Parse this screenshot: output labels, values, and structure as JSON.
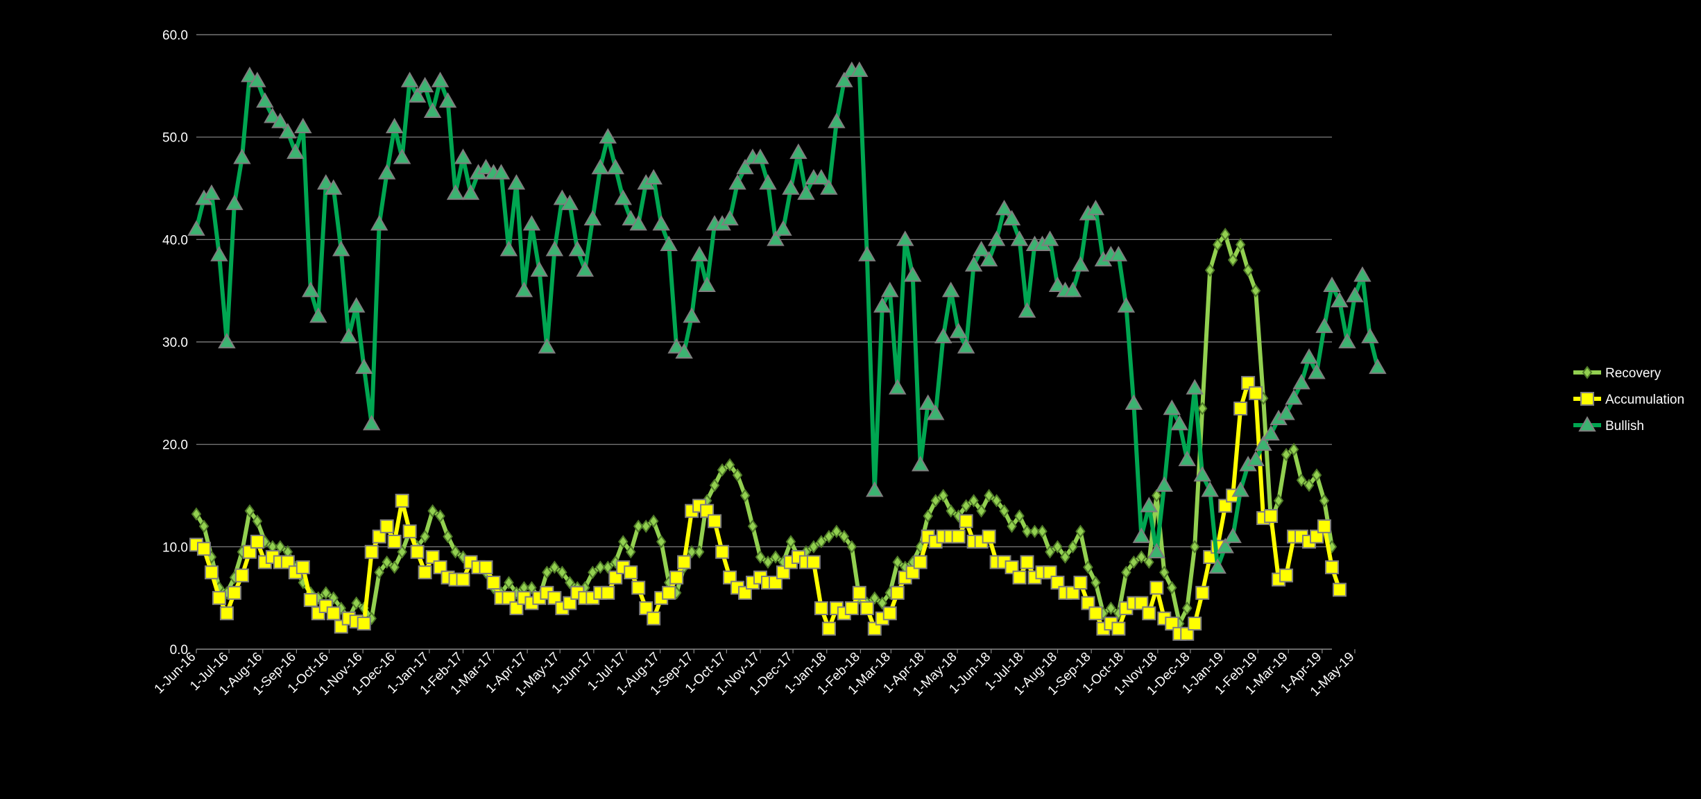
{
  "chart_data": {
    "type": "line",
    "ylim": [
      0,
      60
    ],
    "y_ticks": [
      "0.0",
      "10.0",
      "20.0",
      "30.0",
      "40.0",
      "50.0",
      "60.0"
    ],
    "x_ticks": [
      "1-Jun-16",
      "1-Jul-16",
      "1-Aug-16",
      "1-Sep-16",
      "1-Oct-16",
      "1-Nov-16",
      "1-Dec-16",
      "1-Jan-17",
      "1-Feb-17",
      "1-Mar-17",
      "1-Apr-17",
      "1-May-17",
      "1-Jun-17",
      "1-Jul-17",
      "1-Aug-17",
      "1-Sep-17",
      "1-Oct-17",
      "1-Nov-17",
      "1-Dec-17",
      "1-Jan-18",
      "1-Feb-18",
      "1-Mar-18",
      "1-Apr-18",
      "1-May-18",
      "1-Jun-18",
      "1-Jul-18",
      "1-Aug-18",
      "1-Sep-18",
      "1-Oct-18",
      "1-Nov-18",
      "1-Dec-18",
      "1-Jan-19",
      "1-Feb-19",
      "1-Mar-19",
      "1-Apr-19",
      "1-May-19"
    ],
    "x_start": "1-Jun-16",
    "interval": "weekly",
    "grid": true,
    "legend": "right",
    "series": [
      {
        "name": "Recovery",
        "color": "#92d050",
        "marker": "diamond",
        "values": [
          13.2,
          12.0,
          9.0,
          6.0,
          5.5,
          7.0,
          9.5,
          13.5,
          12.5,
          10.5,
          10.0,
          10.0,
          9.5,
          8.0,
          6.5,
          5.5,
          5.0,
          5.5,
          5.0,
          4.0,
          3.0,
          4.5,
          4.0,
          3.0,
          7.5,
          8.5,
          8.0,
          9.5,
          11.5,
          10.0,
          11.0,
          13.5,
          13.0,
          11.0,
          9.5,
          9.0,
          8.5,
          8.0,
          7.5,
          6.0,
          5.5,
          6.5,
          5.5,
          6.0,
          6.0,
          5.0,
          7.5,
          8.0,
          7.5,
          6.5,
          6.0,
          6.0,
          7.5,
          8.0,
          8.0,
          8.5,
          10.5,
          9.5,
          12.0,
          12.0,
          12.5,
          10.5,
          6.5,
          5.5,
          8.0,
          9.5,
          9.5,
          14.5,
          16.0,
          17.5,
          18.0,
          17.0,
          15.0,
          12.0,
          9.0,
          8.5,
          9.0,
          8.5,
          10.5,
          9.0,
          9.5,
          10.0,
          10.5,
          11.0,
          11.5,
          11.0,
          10.0,
          5.0,
          4.5,
          5.0,
          4.5,
          5.5,
          8.5,
          8.0,
          8.5,
          10.0,
          13.0,
          14.5,
          15.0,
          13.5,
          13.0,
          14.0,
          14.5,
          13.5,
          15.0,
          14.5,
          13.5,
          12.0,
          13.0,
          11.5,
          11.5,
          11.5,
          9.5,
          10.0,
          9.0,
          10.0,
          11.5,
          8.0,
          6.5,
          3.5,
          4.0,
          3.5,
          7.5,
          8.5,
          9.0,
          8.5,
          15.0,
          7.5,
          6.0,
          2.5,
          4.0,
          10.0,
          23.5,
          37.0,
          39.5,
          40.5,
          38.0,
          39.5,
          37.0,
          35.0,
          24.5,
          12.5,
          14.5,
          19.0,
          19.5,
          16.5,
          16.0,
          17.0,
          14.5,
          10.0
        ]
      },
      {
        "name": "Accumulation",
        "color": "#ffff00",
        "marker": "square",
        "values": [
          10.2,
          9.8,
          7.5,
          5.0,
          3.5,
          5.5,
          7.2,
          9.5,
          10.5,
          8.5,
          9.0,
          8.5,
          8.5,
          7.5,
          8.0,
          4.8,
          3.5,
          4.2,
          3.5,
          2.2,
          3.0,
          2.7,
          2.5,
          9.5,
          11.0,
          12.0,
          10.5,
          14.5,
          11.5,
          9.5,
          7.5,
          9.0,
          8.0,
          7.0,
          6.8,
          6.8,
          8.5,
          8.0,
          8.0,
          6.5,
          5.0,
          5.0,
          4.0,
          5.0,
          4.5,
          5.0,
          5.5,
          5.0,
          4.0,
          4.5,
          5.5,
          5.0,
          5.0,
          5.5,
          5.5,
          7.0,
          8.0,
          7.5,
          6.0,
          4.0,
          3.0,
          5.0,
          5.5,
          7.0,
          8.5,
          13.5,
          14.0,
          13.5,
          12.5,
          9.5,
          7.0,
          6.0,
          5.5,
          6.5,
          7.0,
          6.5,
          6.5,
          7.5,
          8.5,
          9.0,
          8.5,
          8.5,
          4.0,
          2.0,
          4.0,
          3.5,
          4.0,
          5.5,
          4.0,
          2.0,
          3.0,
          3.5,
          5.5,
          7.0,
          7.5,
          8.5,
          11.0,
          10.5,
          11.0,
          11.0,
          11.0,
          12.5,
          10.5,
          10.5,
          11.0,
          8.5,
          8.5,
          8.0,
          7.0,
          8.5,
          7.0,
          7.5,
          7.5,
          6.5,
          5.5,
          5.5,
          6.5,
          4.5,
          3.5,
          2.0,
          2.5,
          2.0,
          4.0,
          4.5,
          4.5,
          3.5,
          6.0,
          3.0,
          2.5,
          1.5,
          1.5,
          2.5,
          5.5,
          9.0,
          10.0,
          14.0,
          15.0,
          23.5,
          26.0,
          25.0,
          12.8,
          13.0,
          6.8,
          7.2,
          11.0,
          11.0,
          10.5,
          11.0,
          12.0,
          8.0,
          5.8
        ]
      },
      {
        "name": "Bullish",
        "color": "#00a651",
        "marker": "triangle",
        "values": [
          41.0,
          44.0,
          44.5,
          38.5,
          30.0,
          43.5,
          48.0,
          56.0,
          55.5,
          53.5,
          52.0,
          51.5,
          50.5,
          48.5,
          51.0,
          35.0,
          32.5,
          45.5,
          45.0,
          39.0,
          30.5,
          33.5,
          27.5,
          22.0,
          41.5,
          46.5,
          51.0,
          48.0,
          55.5,
          54.0,
          55.0,
          52.5,
          55.5,
          53.5,
          44.5,
          48.0,
          44.5,
          46.5,
          47.0,
          46.5,
          46.5,
          39.0,
          45.5,
          35.0,
          41.5,
          37.0,
          29.5,
          39.0,
          44.0,
          43.5,
          39.0,
          37.0,
          42.0,
          47.0,
          50.0,
          47.0,
          44.0,
          42.0,
          41.5,
          45.5,
          46.0,
          41.5,
          39.5,
          29.5,
          29.0,
          32.5,
          38.5,
          35.5,
          41.5,
          41.5,
          42.0,
          45.5,
          47.0,
          48.0,
          48.0,
          45.5,
          40.0,
          41.0,
          45.0,
          48.5,
          44.5,
          46.0,
          46.0,
          45.0,
          51.5,
          55.5,
          56.5,
          56.5,
          38.5,
          15.5,
          33.5,
          35.0,
          25.5,
          40.0,
          36.5,
          18.0,
          24.0,
          23.0,
          30.5,
          35.0,
          31.0,
          29.5,
          37.5,
          39.0,
          38.0,
          40.0,
          43.0,
          42.0,
          40.0,
          33.0,
          39.5,
          39.5,
          40.0,
          35.5,
          35.0,
          35.0,
          37.5,
          42.5,
          43.0,
          38.0,
          38.5,
          38.5,
          33.5,
          24.0,
          11.0,
          14.0,
          9.5,
          16.0,
          23.5,
          22.0,
          18.5,
          25.5,
          17.0,
          15.5,
          8.0,
          10.0,
          11.0,
          15.5,
          18.0,
          18.5,
          20.0,
          21.0,
          22.5,
          23.0,
          24.5,
          26.0,
          28.5,
          27.0,
          31.5,
          35.5,
          34.0,
          30.0,
          34.5,
          36.5,
          30.5,
          27.5
        ]
      }
    ]
  }
}
